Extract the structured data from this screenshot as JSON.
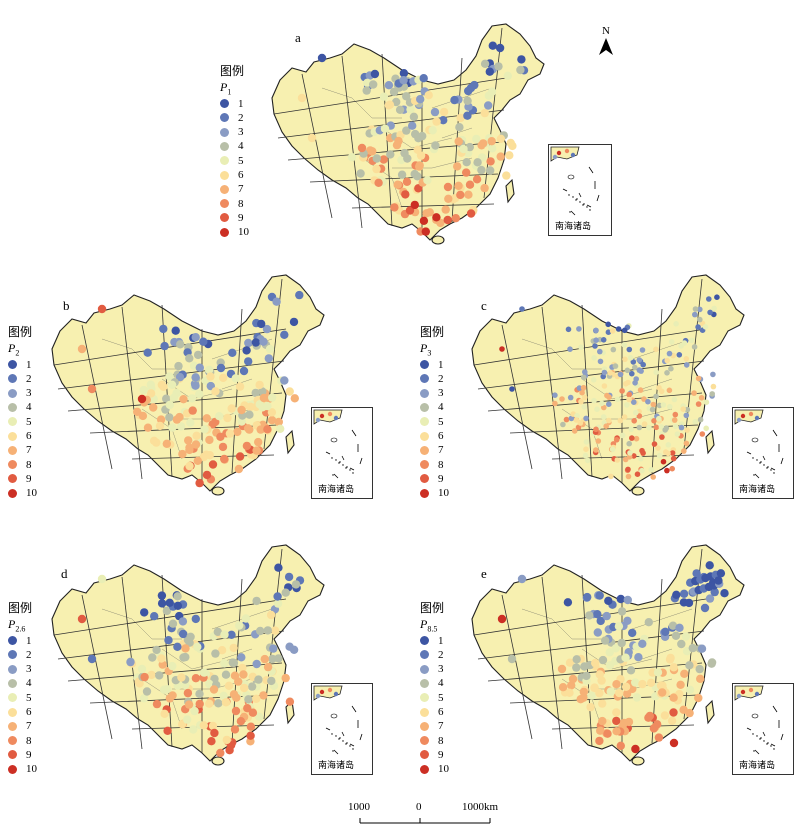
{
  "north_label": "N",
  "inset_caption": "南海诸岛",
  "legend_title": "图例",
  "legend_values": [
    "1",
    "2",
    "3",
    "4",
    "5",
    "6",
    "7",
    "8",
    "9",
    "10"
  ],
  "legend_colors": [
    "#3d55a3",
    "#5e77b6",
    "#8a9cc4",
    "#b8bfa8",
    "#e9eeb5",
    "#fbdf9a",
    "#f6b176",
    "#ef8a5f",
    "#e15b41",
    "#cc2f24"
  ],
  "scale": {
    "left": "1000",
    "mid": "0",
    "right": "1000km"
  },
  "panels": [
    {
      "id": "a",
      "letter": "a",
      "var": "P",
      "sub": "1",
      "mix": 0.55
    },
    {
      "id": "b",
      "letter": "b",
      "var": "P",
      "sub": "2",
      "mix": 0.6
    },
    {
      "id": "c",
      "letter": "c",
      "var": "P",
      "sub": "3",
      "mix": 0.45
    },
    {
      "id": "d",
      "letter": "d",
      "var": "P",
      "sub": "2.6",
      "mix": 0.55
    },
    {
      "id": "e",
      "letter": "e",
      "var": "P",
      "sub": "8.5",
      "mix": 0.7
    }
  ]
}
